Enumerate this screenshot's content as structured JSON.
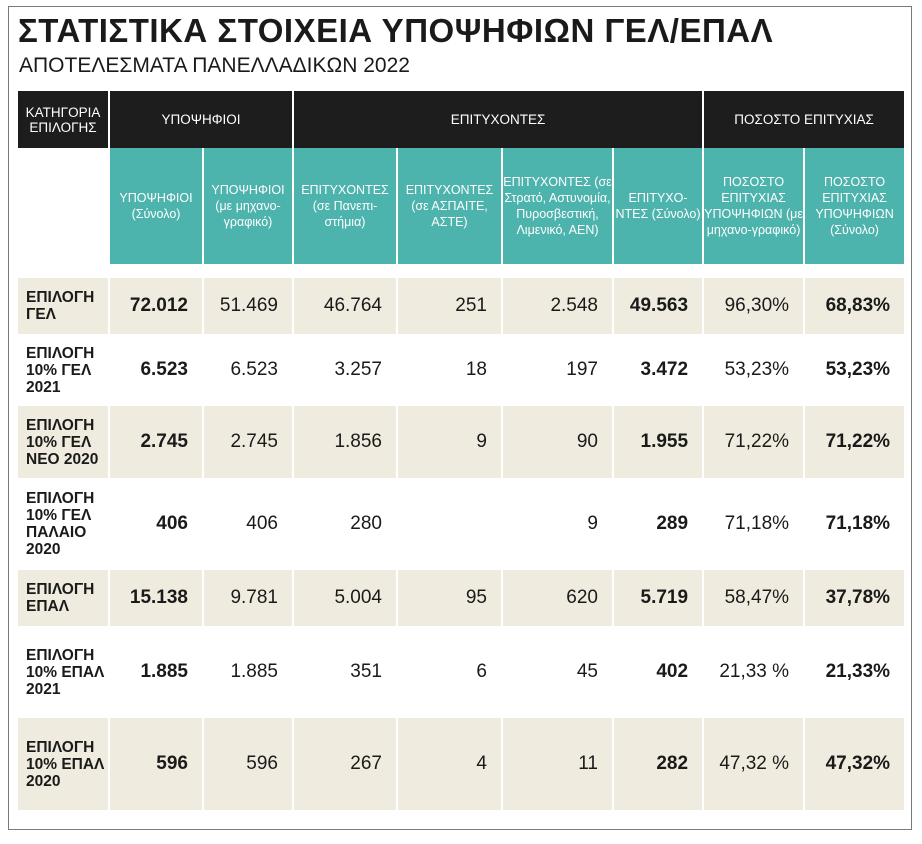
{
  "title": "ΣΤΑΤΙΣΤΙΚΑ ΣΤΟΙΧΕΙΑ ΥΠΟΨΗΦΙΩΝ ΓΕΛ/ΕΠΑΛ",
  "subtitle": "ΑΠΟΤΕΛΕΣΜΑΤΑ ΠΑΝΕΛΛΑΔΙΚΩΝ 2022",
  "groups": {
    "category": "ΚΑΤΗΓΟΡΙΑ ΕΠΙΛΟΓΗΣ",
    "candidates": "ΥΠΟΨΗΦΙΟΙ",
    "successful": "ΕΠΙΤΥΧΟΝΤΕΣ",
    "rate": "ΠΟΣΟΣΤΟ ΕΠΙΤΥΧΙΑΣ"
  },
  "columns": [
    "ΥΠΟΨΗΦΙΟΙ (Σύνολο)",
    "ΥΠΟΨΗΦΙΟΙ (με μηχανο-γραφικό)",
    "ΕΠΙΤΥΧΟΝΤΕΣ (σε Πανεπι-στήμια)",
    "ΕΠΙΤΥΧΟΝΤΕΣ (σε ΑΣΠΑΙΤΕ, ΑΣΤΕ)",
    "ΕΠΙΤΥΧΟΝΤΕΣ (σε Στρατό, Αστυνομία, Πυροσβεστική, Λιμενικό, ΑΕΝ)",
    "ΕΠΙΤΥΧΟ-ΝΤΕΣ (Σύνολο)",
    "ΠΟΣΟΣΤΟ ΕΠΙΤΥΧΙΑΣ ΥΠΟΨΗΦΙΩΝ (με μηχανο-γραφικό)",
    "ΠΟΣΟΣΤΟ ΕΠΙΤΥΧΙΑΣ ΥΠΟΨΗΦΙΩΝ (Σύνολο)"
  ],
  "rows": [
    {
      "label": "ΕΠΙΛΟΓΗ ΓΕΛ",
      "values": [
        "72.012",
        "51.469",
        "46.764",
        "251",
        "2.548",
        "49.563",
        "96,30%",
        "68,83%"
      ]
    },
    {
      "label": "ΕΠΙΛΟΓΗ 10% ΓΕΛ 2021",
      "values": [
        "6.523",
        "6.523",
        "3.257",
        "18",
        "197",
        "3.472",
        "53,23%",
        "53,23%"
      ]
    },
    {
      "label": "ΕΠΙΛΟΓΗ 10% ΓΕΛ ΝΕΟ 2020",
      "values": [
        "2.745",
        "2.745",
        "1.856",
        "9",
        "90",
        "1.955",
        "71,22%",
        "71,22%"
      ]
    },
    {
      "label": "ΕΠΙΛΟΓΗ 10% ΓΕΛ ΠΑΛΑΙΟ 2020",
      "values": [
        "406",
        "406",
        "280",
        "",
        "9",
        "289",
        "71,18%",
        "71,18%"
      ]
    },
    {
      "label": "ΕΠΙΛΟΓΗ ΕΠΑΛ",
      "values": [
        "15.138",
        "9.781",
        "5.004",
        "95",
        "620",
        "5.719",
        "58,47%",
        "37,78%"
      ]
    },
    {
      "label": "ΕΠΙΛΟΓΗ 10% ΕΠΑΛ 2021",
      "values": [
        "1.885",
        "1.885",
        "351",
        "6",
        "45",
        "402",
        "21,33 %",
        "21,33%"
      ]
    },
    {
      "label": "ΕΠΙΛΟΓΗ 10% ΕΠΑΛ 2020",
      "values": [
        "596",
        "596",
        "267",
        "4",
        "11",
        "282",
        "47,32 %",
        "47,32%"
      ]
    }
  ],
  "colors": {
    "header_dark": "#1d1d1d",
    "header_teal": "#4db3ad",
    "row_shade": "#efecdf"
  }
}
